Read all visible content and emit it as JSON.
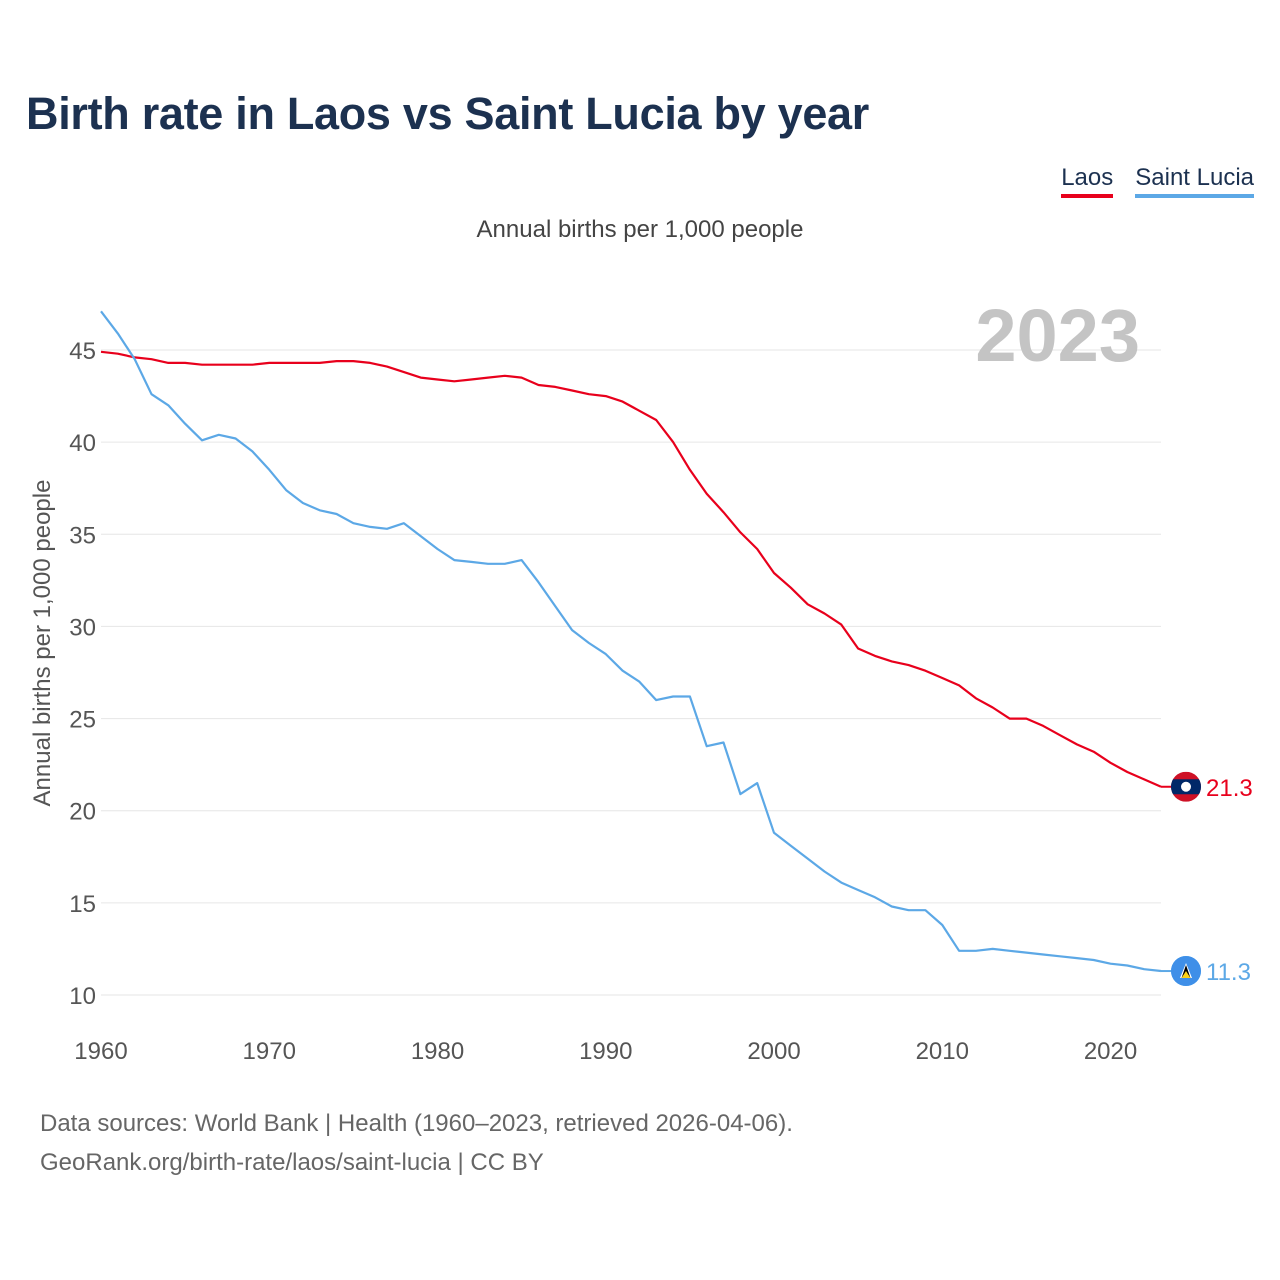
{
  "title": "Birth rate in Laos vs Saint Lucia by year",
  "subtitle": "Annual births per 1,000 people",
  "year_label": "2023",
  "legend": [
    {
      "name": "Laos",
      "color": "#e8001c"
    },
    {
      "name": "Saint Lucia",
      "color": "#5ca8e6"
    }
  ],
  "source_line1": "Data sources: World Bank | Health (1960–2023, retrieved 2026-04-06).",
  "source_line2": "GeoRank.org/birth-rate/laos/saint-lucia | CC BY",
  "chart_data": {
    "type": "line",
    "title": "Birth rate in Laos vs Saint Lucia by year",
    "ylabel": "Annual births per 1,000 people",
    "xlabel": "",
    "xlim": [
      1960,
      2023
    ],
    "ylim": [
      10,
      47
    ],
    "x_ticks": [
      1960,
      1970,
      1980,
      1990,
      2000,
      2010,
      2020
    ],
    "y_ticks": [
      10,
      15,
      20,
      25,
      30,
      35,
      40,
      45
    ],
    "grid": true,
    "x": [
      1960,
      1961,
      1962,
      1963,
      1964,
      1965,
      1966,
      1967,
      1968,
      1969,
      1970,
      1971,
      1972,
      1973,
      1974,
      1975,
      1976,
      1977,
      1978,
      1979,
      1980,
      1981,
      1982,
      1983,
      1984,
      1985,
      1986,
      1987,
      1988,
      1989,
      1990,
      1991,
      1992,
      1993,
      1994,
      1995,
      1996,
      1997,
      1998,
      1999,
      2000,
      2001,
      2002,
      2003,
      2004,
      2005,
      2006,
      2007,
      2008,
      2009,
      2010,
      2011,
      2012,
      2013,
      2014,
      2015,
      2016,
      2017,
      2018,
      2019,
      2020,
      2021,
      2022,
      2023
    ],
    "series": [
      {
        "name": "Laos",
        "color": "#e8001c",
        "end_label": "21.3",
        "values": [
          44.9,
          44.8,
          44.6,
          44.5,
          44.3,
          44.3,
          44.2,
          44.2,
          44.2,
          44.2,
          44.3,
          44.3,
          44.3,
          44.3,
          44.4,
          44.4,
          44.3,
          44.1,
          43.8,
          43.5,
          43.4,
          43.3,
          43.4,
          43.5,
          43.6,
          43.5,
          43.1,
          43.0,
          42.8,
          42.6,
          42.5,
          42.2,
          41.7,
          41.2,
          40.0,
          38.5,
          37.2,
          36.2,
          35.1,
          34.2,
          32.9,
          32.1,
          31.2,
          30.7,
          30.1,
          28.8,
          28.4,
          28.1,
          27.9,
          27.6,
          27.2,
          26.8,
          26.1,
          25.6,
          25.0,
          25.0,
          24.6,
          24.1,
          23.6,
          23.2,
          22.6,
          22.1,
          21.7,
          21.3
        ]
      },
      {
        "name": "Saint Lucia",
        "color": "#5ca8e6",
        "end_label": "11.3",
        "values": [
          47.1,
          45.9,
          44.5,
          42.6,
          42.0,
          41.0,
          40.1,
          40.4,
          40.2,
          39.5,
          38.5,
          37.4,
          36.7,
          36.3,
          36.1,
          35.6,
          35.4,
          35.3,
          35.6,
          34.9,
          34.2,
          33.6,
          33.5,
          33.4,
          33.4,
          33.6,
          32.4,
          31.1,
          29.8,
          29.1,
          28.5,
          27.6,
          27.0,
          26.0,
          26.2,
          26.2,
          23.5,
          23.7,
          20.9,
          21.5,
          18.8,
          18.1,
          17.4,
          16.7,
          16.1,
          15.7,
          15.3,
          14.8,
          14.6,
          14.6,
          13.8,
          12.4,
          12.4,
          12.5,
          12.4,
          12.3,
          12.2,
          12.1,
          12.0,
          11.9,
          11.7,
          11.6,
          11.4,
          11.3
        ]
      }
    ]
  }
}
